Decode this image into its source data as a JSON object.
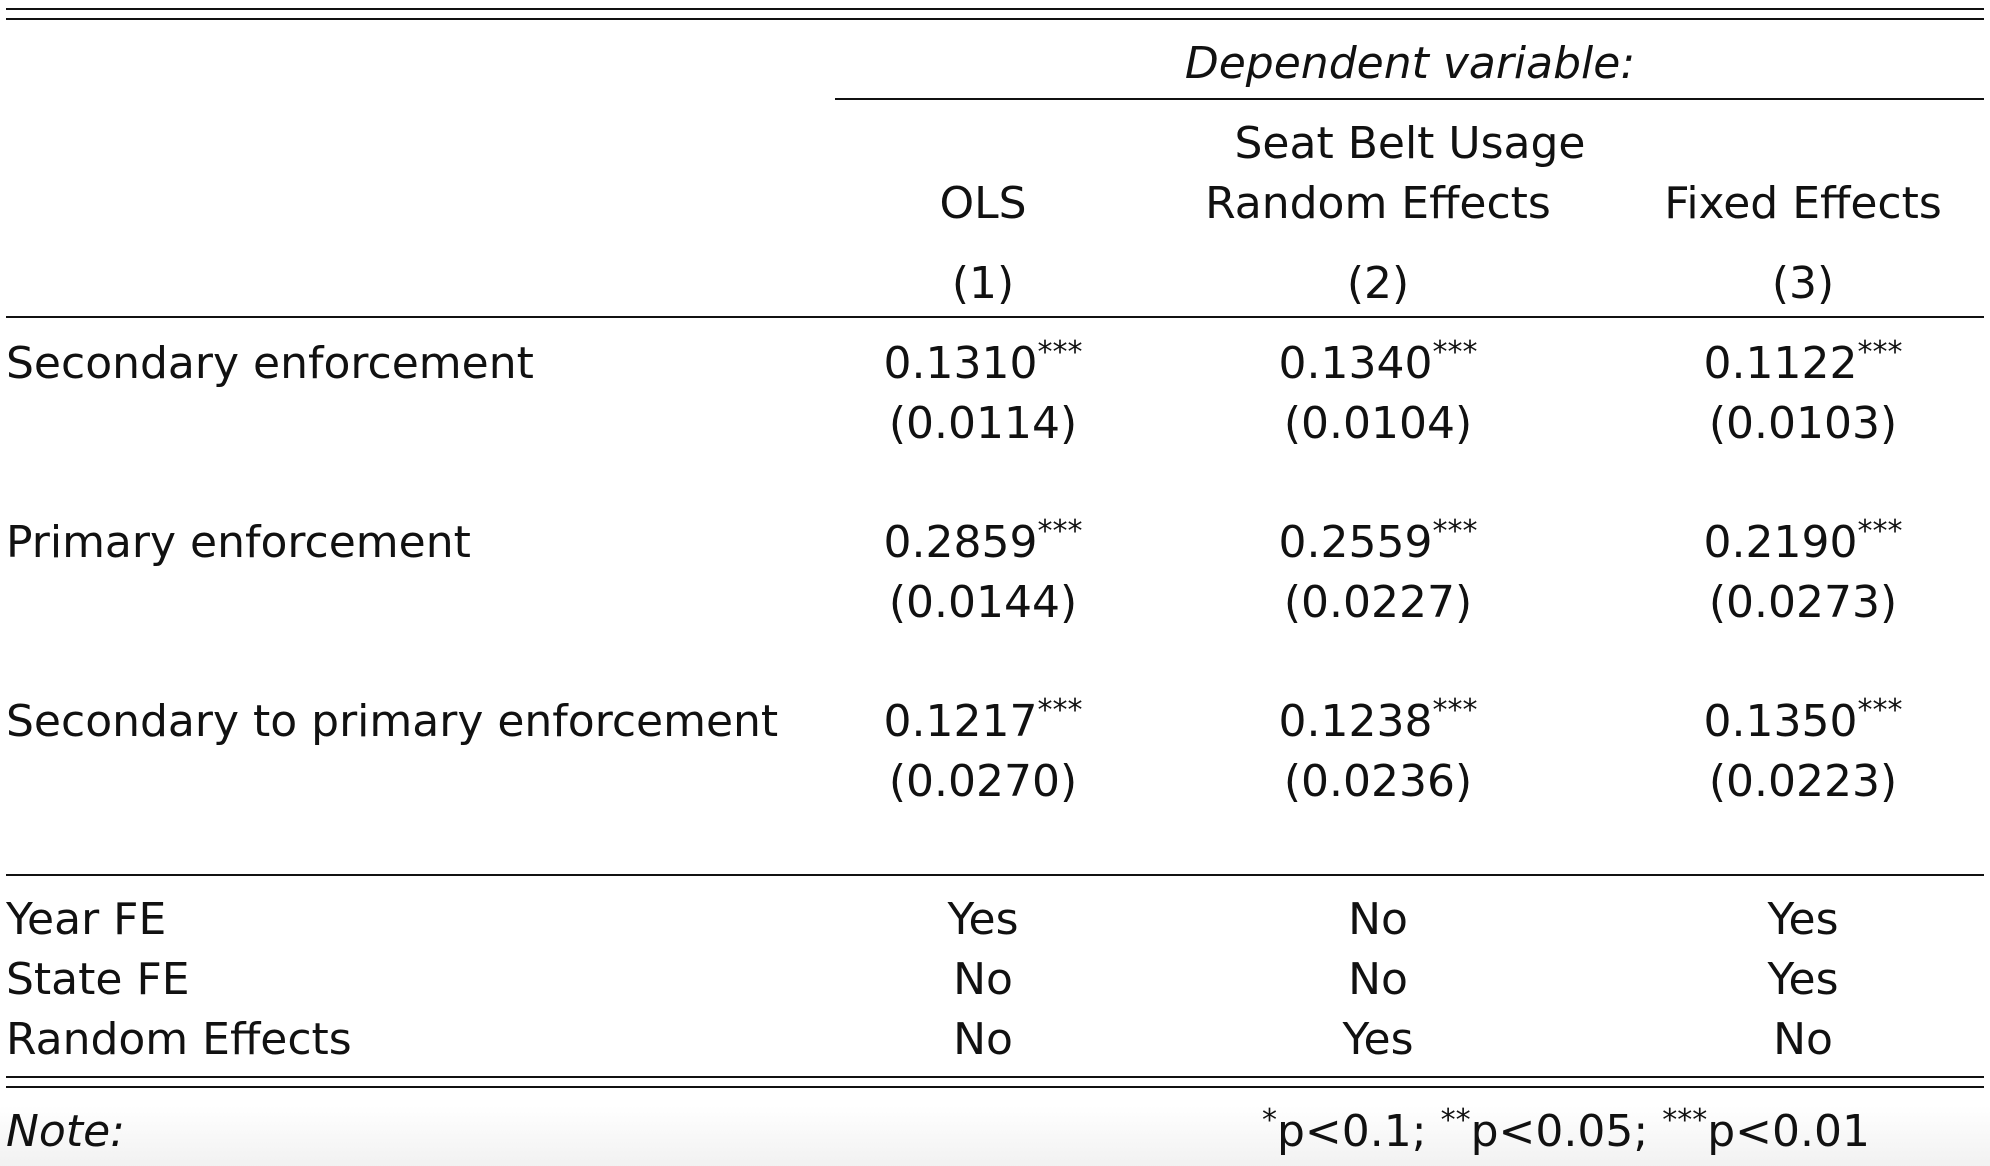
{
  "header": {
    "dependent_variable_label": "Dependent variable:",
    "dependent_variable": "Seat Belt Usage",
    "models": [
      {
        "name": "OLS",
        "number": "(1)"
      },
      {
        "name": "Random Effects",
        "number": "(2)"
      },
      {
        "name": "Fixed Effects",
        "number": "(3)"
      }
    ]
  },
  "coefficients": [
    {
      "label": "Secondary enforcement",
      "estimates": [
        {
          "value": "0.1310",
          "stars": "***",
          "se": "(0.0114)"
        },
        {
          "value": "0.1340",
          "stars": "***",
          "se": "(0.0104)"
        },
        {
          "value": "0.1122",
          "stars": "***",
          "se": "(0.0103)"
        }
      ]
    },
    {
      "label": "Primary enforcement",
      "estimates": [
        {
          "value": "0.2859",
          "stars": "***",
          "se": "(0.0144)"
        },
        {
          "value": "0.2559",
          "stars": "***",
          "se": "(0.0227)"
        },
        {
          "value": "0.2190",
          "stars": "***",
          "se": "(0.0273)"
        }
      ]
    },
    {
      "label": "Secondary to primary enforcement",
      "estimates": [
        {
          "value": "0.1217",
          "stars": "***",
          "se": "(0.0270)"
        },
        {
          "value": "0.1238",
          "stars": "***",
          "se": "(0.0236)"
        },
        {
          "value": "0.1350",
          "stars": "***",
          "se": "(0.0223)"
        }
      ]
    }
  ],
  "indicators": [
    {
      "label": "Year FE",
      "values": [
        "Yes",
        "No",
        "Yes"
      ]
    },
    {
      "label": "State FE",
      "values": [
        "No",
        "No",
        "Yes"
      ]
    },
    {
      "label": "Random Effects",
      "values": [
        "No",
        "Yes",
        "No"
      ]
    }
  ],
  "note": {
    "label": "Note:",
    "sig": [
      {
        "stars": "*",
        "text": "p<0.1;"
      },
      {
        "stars": "**",
        "text": "p<0.05;"
      },
      {
        "stars": "***",
        "text": "p<0.01"
      }
    ]
  }
}
